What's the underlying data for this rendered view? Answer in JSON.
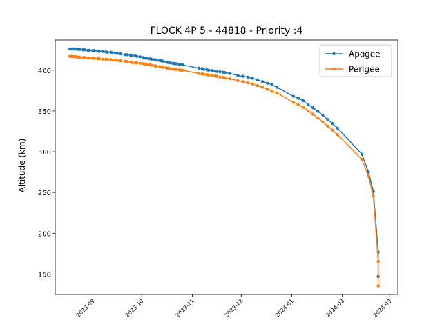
{
  "chart_data": {
    "type": "line",
    "title": "FLOCK 4P 5 - 44818 - Priority :4",
    "xlabel": "",
    "ylabel": "Altitude (km)",
    "x_type": "date",
    "xlim": [
      "2023-08-09",
      "2024-03-06"
    ],
    "ylim": [
      125,
      437
    ],
    "x_ticks": [
      "2023-09-01",
      "2023-10-01",
      "2023-11-01",
      "2023-12-01",
      "2024-01-01",
      "2024-02-01",
      "2024-03-01"
    ],
    "x_tick_labels": [
      "2023-09",
      "2023-10",
      "2023-11",
      "2023-12",
      "2024-01",
      "2024-02",
      "2024-03"
    ],
    "y_ticks": [
      150,
      200,
      250,
      300,
      350,
      400
    ],
    "y_tick_labels": [
      "150",
      "200",
      "250",
      "300",
      "350",
      "400"
    ],
    "grid": false,
    "legend": {
      "position": "top-right"
    },
    "series": [
      {
        "name": "Apogee",
        "color": "#1f77b4",
        "points": [
          [
            "2023-08-18",
            426
          ],
          [
            "2023-08-19",
            426
          ],
          [
            "2023-08-20",
            426
          ],
          [
            "2023-08-21",
            426
          ],
          [
            "2023-08-22",
            426
          ],
          [
            "2023-08-23",
            425.5
          ],
          [
            "2023-08-24",
            425.5
          ],
          [
            "2023-08-26",
            425
          ],
          [
            "2023-08-27",
            425
          ],
          [
            "2023-08-29",
            424.5
          ],
          [
            "2023-08-30",
            424.5
          ],
          [
            "2023-09-01",
            424
          ],
          [
            "2023-09-02",
            424
          ],
          [
            "2023-09-04",
            423.5
          ],
          [
            "2023-09-05",
            423
          ],
          [
            "2023-09-07",
            423
          ],
          [
            "2023-09-09",
            422.5
          ],
          [
            "2023-09-10",
            422
          ],
          [
            "2023-09-12",
            422
          ],
          [
            "2023-09-13",
            421.5
          ],
          [
            "2023-09-15",
            421
          ],
          [
            "2023-09-16",
            420.5
          ],
          [
            "2023-09-18",
            420
          ],
          [
            "2023-09-21",
            419
          ],
          [
            "2023-09-22",
            419
          ],
          [
            "2023-09-24",
            418.5
          ],
          [
            "2023-09-25",
            418
          ],
          [
            "2023-09-27",
            417.5
          ],
          [
            "2023-09-28",
            417
          ],
          [
            "2023-09-30",
            416.5
          ],
          [
            "2023-10-02",
            415.5
          ],
          [
            "2023-10-03",
            415
          ],
          [
            "2023-10-04",
            414.5
          ],
          [
            "2023-10-06",
            414
          ],
          [
            "2023-10-07",
            413.5
          ],
          [
            "2023-10-09",
            413
          ],
          [
            "2023-10-10",
            412.5
          ],
          [
            "2023-10-12",
            412
          ],
          [
            "2023-10-13",
            411.5
          ],
          [
            "2023-10-14",
            411
          ],
          [
            "2023-10-16",
            410
          ],
          [
            "2023-10-17",
            409.5
          ],
          [
            "2023-10-18",
            409
          ],
          [
            "2023-10-20",
            408.5
          ],
          [
            "2023-10-21",
            408
          ],
          [
            "2023-10-22",
            408
          ],
          [
            "2023-10-24",
            407
          ],
          [
            "2023-10-25",
            407
          ],
          [
            "2023-10-26",
            406.5
          ],
          [
            "2023-11-05",
            402.5
          ],
          [
            "2023-11-07",
            402
          ],
          [
            "2023-11-08",
            401
          ],
          [
            "2023-11-10",
            400.5
          ],
          [
            "2023-11-11",
            400
          ],
          [
            "2023-11-13",
            399.5
          ],
          [
            "2023-11-15",
            399
          ],
          [
            "2023-11-16",
            398.5
          ],
          [
            "2023-11-18",
            398
          ],
          [
            "2023-11-20",
            397.5
          ],
          [
            "2023-11-21",
            397
          ],
          [
            "2023-11-24",
            396
          ],
          [
            "2023-11-29",
            393.5
          ],
          [
            "2023-12-02",
            392.5
          ],
          [
            "2023-12-05",
            391.5
          ],
          [
            "2023-12-08",
            390
          ],
          [
            "2023-12-11",
            388
          ],
          [
            "2023-12-14",
            386
          ],
          [
            "2023-12-17",
            384
          ],
          [
            "2023-12-20",
            382
          ],
          [
            "2023-12-23",
            379
          ],
          [
            "2024-01-02",
            368
          ],
          [
            "2024-01-05",
            365.5
          ],
          [
            "2024-01-08",
            362.5
          ],
          [
            "2024-01-11",
            358
          ],
          [
            "2024-01-14",
            354
          ],
          [
            "2024-01-17",
            349.5
          ],
          [
            "2024-01-20",
            345
          ],
          [
            "2024-01-23",
            339.5
          ],
          [
            "2024-01-26",
            334.5
          ],
          [
            "2024-01-29",
            329
          ],
          [
            "2024-02-13",
            297
          ],
          [
            "2024-02-17",
            275
          ],
          [
            "2024-02-20",
            251.5
          ],
          [
            "2024-02-23",
            177
          ],
          [
            "2024-02-23",
            147
          ]
        ]
      },
      {
        "name": "Perigee",
        "color": "#ff7f0e",
        "points": [
          [
            "2023-08-18",
            417
          ],
          [
            "2023-08-19",
            417
          ],
          [
            "2023-08-20",
            416.5
          ],
          [
            "2023-08-21",
            416.5
          ],
          [
            "2023-08-22",
            416.5
          ],
          [
            "2023-08-23",
            416
          ],
          [
            "2023-08-24",
            416
          ],
          [
            "2023-08-26",
            415.5
          ],
          [
            "2023-08-27",
            415.5
          ],
          [
            "2023-08-29",
            415
          ],
          [
            "2023-08-30",
            415
          ],
          [
            "2023-09-01",
            414.5
          ],
          [
            "2023-09-02",
            414.5
          ],
          [
            "2023-09-04",
            414
          ],
          [
            "2023-09-05",
            414
          ],
          [
            "2023-09-07",
            413.5
          ],
          [
            "2023-09-09",
            413.5
          ],
          [
            "2023-09-10",
            413
          ],
          [
            "2023-09-12",
            413
          ],
          [
            "2023-09-13",
            412.5
          ],
          [
            "2023-09-15",
            412.5
          ],
          [
            "2023-09-16",
            412
          ],
          [
            "2023-09-18",
            411.5
          ],
          [
            "2023-09-21",
            411
          ],
          [
            "2023-09-22",
            410.5
          ],
          [
            "2023-09-24",
            410
          ],
          [
            "2023-09-25",
            409.5
          ],
          [
            "2023-09-27",
            409
          ],
          [
            "2023-09-28",
            409
          ],
          [
            "2023-09-30",
            408.5
          ],
          [
            "2023-10-02",
            408
          ],
          [
            "2023-10-03",
            407.5
          ],
          [
            "2023-10-04",
            407
          ],
          [
            "2023-10-06",
            406.5
          ],
          [
            "2023-10-07",
            406
          ],
          [
            "2023-10-09",
            405.5
          ],
          [
            "2023-10-10",
            405
          ],
          [
            "2023-10-12",
            404.5
          ],
          [
            "2023-10-13",
            404
          ],
          [
            "2023-10-14",
            403.5
          ],
          [
            "2023-10-16",
            403
          ],
          [
            "2023-10-17",
            402.5
          ],
          [
            "2023-10-18",
            402
          ],
          [
            "2023-10-20",
            401.5
          ],
          [
            "2023-10-21",
            401
          ],
          [
            "2023-10-22",
            401
          ],
          [
            "2023-10-24",
            400.5
          ],
          [
            "2023-10-25",
            400
          ],
          [
            "2023-10-26",
            400
          ],
          [
            "2023-11-05",
            396
          ],
          [
            "2023-11-07",
            395.5
          ],
          [
            "2023-11-08",
            395
          ],
          [
            "2023-11-10",
            394.5
          ],
          [
            "2023-11-11",
            394
          ],
          [
            "2023-11-13",
            393.5
          ],
          [
            "2023-11-15",
            393
          ],
          [
            "2023-11-16",
            392.5
          ],
          [
            "2023-11-18",
            391.5
          ],
          [
            "2023-11-20",
            391
          ],
          [
            "2023-11-21",
            390.5
          ],
          [
            "2023-11-24",
            389.5
          ],
          [
            "2023-11-29",
            387
          ],
          [
            "2023-12-02",
            386
          ],
          [
            "2023-12-05",
            384.5
          ],
          [
            "2023-12-08",
            383
          ],
          [
            "2023-12-11",
            381
          ],
          [
            "2023-12-14",
            379
          ],
          [
            "2023-12-17",
            376.5
          ],
          [
            "2023-12-20",
            374
          ],
          [
            "2023-12-23",
            372
          ],
          [
            "2024-01-02",
            360.5
          ],
          [
            "2024-01-05",
            357.5
          ],
          [
            "2024-01-08",
            354.5
          ],
          [
            "2024-01-11",
            350
          ],
          [
            "2024-01-14",
            346
          ],
          [
            "2024-01-17",
            341.5
          ],
          [
            "2024-01-20",
            336.5
          ],
          [
            "2024-01-23",
            331.5
          ],
          [
            "2024-01-26",
            326.5
          ],
          [
            "2024-01-29",
            321
          ],
          [
            "2024-02-13",
            290.5
          ],
          [
            "2024-02-17",
            270
          ],
          [
            "2024-02-20",
            245.5
          ],
          [
            "2024-02-23",
            165.5
          ],
          [
            "2024-02-23",
            135.5
          ]
        ]
      }
    ]
  }
}
